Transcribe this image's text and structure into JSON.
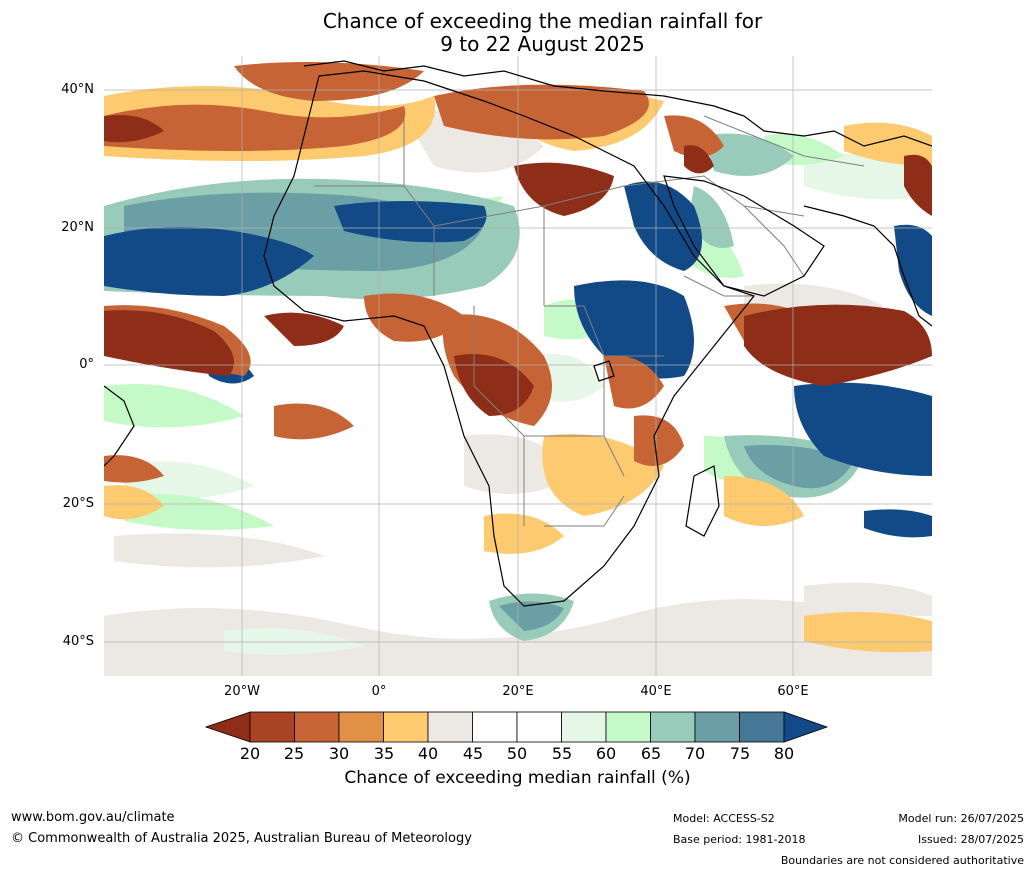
{
  "title": {
    "line1": "Chance of exceeding the median rainfall for",
    "line2": "9 to 22 August 2025"
  },
  "map": {
    "lat_labels": [
      "40°N",
      "20°N",
      "0°",
      "20°S",
      "40°S"
    ],
    "lon_labels": [
      "20°W",
      "0°",
      "20°E",
      "40°E",
      "60°E"
    ],
    "ocean_color": "#ffffff",
    "coastline_color": "#000000",
    "border_color": "#7f7f7f",
    "grid_color": "#b0b0b0"
  },
  "colorbar": {
    "ticks": [
      "20",
      "25",
      "30",
      "35",
      "40",
      "45",
      "50",
      "55",
      "60",
      "65",
      "70",
      "75",
      "80"
    ],
    "colors": [
      "#8e2e19",
      "#a84424",
      "#c76435",
      "#e09146",
      "#fdca6f",
      "#ece9e4",
      "#ffffff",
      "#ffffff",
      "#e6f6e7",
      "#c5fac8",
      "#98cbb9",
      "#6b9fa6",
      "#457897",
      "#124a88"
    ],
    "label": "Chance of exceeding median rainfall (%)"
  },
  "footer": {
    "website": "www.bom.gov.au/climate",
    "copyright": "© Commonwealth of Australia 2025, Australian Bureau of Meteorology",
    "model": "Model: ACCESS-S2",
    "base_period": "Base period: 1981-2018",
    "model_run": "Model run: 26/07/2025",
    "issued": "Issued: 28/07/2025",
    "disclaimer": "Boundaries are not considered authoritative"
  }
}
